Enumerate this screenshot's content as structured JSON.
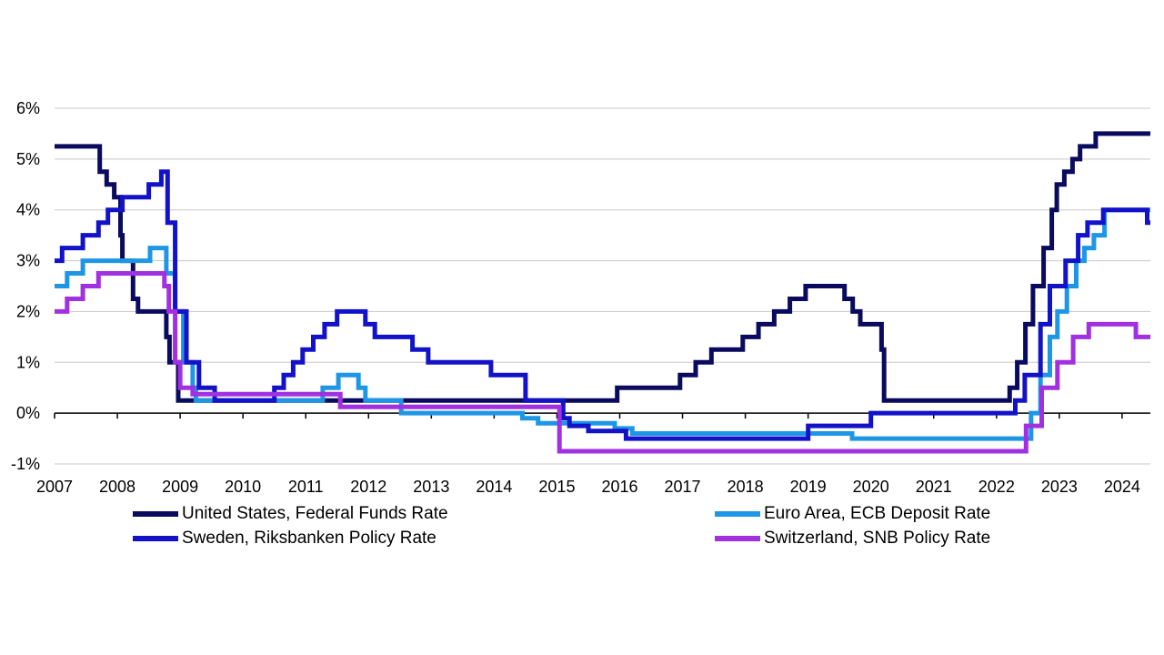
{
  "chart_data": {
    "type": "line",
    "step": true,
    "title": "",
    "xlabel": "",
    "ylabel": "",
    "xlim": [
      2007.0,
      2024.45
    ],
    "ylim": [
      -1,
      6
    ],
    "grid": true,
    "x_ticks": [
      2007,
      2008,
      2009,
      2010,
      2011,
      2012,
      2013,
      2014,
      2015,
      2016,
      2017,
      2018,
      2019,
      2020,
      2021,
      2022,
      2023,
      2024
    ],
    "x_tick_labels": [
      "2007",
      "2008",
      "2009",
      "2010",
      "2011",
      "2012",
      "2013",
      "2014",
      "2015",
      "2016",
      "2017",
      "2018",
      "2019",
      "2020",
      "2021",
      "2022",
      "2023",
      "2024"
    ],
    "y_ticks": [
      -1,
      0,
      1,
      2,
      3,
      4,
      5,
      6
    ],
    "y_tick_labels": [
      "-1%",
      "0%",
      "1%",
      "2%",
      "3%",
      "4%",
      "5%",
      "6%"
    ],
    "legend_position": "bottom",
    "series": [
      {
        "name": "United States, Federal Funds Rate",
        "color": "#0a0a5e",
        "points": [
          [
            2007.0,
            5.25
          ],
          [
            2007.72,
            4.75
          ],
          [
            2007.83,
            4.5
          ],
          [
            2007.95,
            4.25
          ],
          [
            2008.05,
            3.5
          ],
          [
            2008.08,
            3.0
          ],
          [
            2008.25,
            2.25
          ],
          [
            2008.33,
            2.0
          ],
          [
            2008.78,
            1.5
          ],
          [
            2008.83,
            1.0
          ],
          [
            2008.97,
            0.25
          ],
          [
            2015.96,
            0.5
          ],
          [
            2016.96,
            0.75
          ],
          [
            2017.21,
            1.0
          ],
          [
            2017.46,
            1.25
          ],
          [
            2017.96,
            1.5
          ],
          [
            2018.21,
            1.75
          ],
          [
            2018.46,
            2.0
          ],
          [
            2018.71,
            2.25
          ],
          [
            2018.96,
            2.5
          ],
          [
            2019.58,
            2.25
          ],
          [
            2019.71,
            2.0
          ],
          [
            2019.83,
            1.75
          ],
          [
            2020.17,
            1.25
          ],
          [
            2020.21,
            0.25
          ],
          [
            2022.21,
            0.5
          ],
          [
            2022.33,
            1.0
          ],
          [
            2022.46,
            1.75
          ],
          [
            2022.58,
            2.5
          ],
          [
            2022.75,
            3.25
          ],
          [
            2022.88,
            4.0
          ],
          [
            2022.96,
            4.5
          ],
          [
            2023.08,
            4.75
          ],
          [
            2023.21,
            5.0
          ],
          [
            2023.33,
            5.25
          ],
          [
            2023.58,
            5.5
          ],
          [
            2024.45,
            5.5
          ]
        ]
      },
      {
        "name": "Euro Area, ECB Deposit Rate",
        "color": "#1e96e6",
        "points": [
          [
            2007.0,
            2.5
          ],
          [
            2007.2,
            2.75
          ],
          [
            2007.45,
            3.0
          ],
          [
            2008.52,
            3.25
          ],
          [
            2008.78,
            2.75
          ],
          [
            2008.92,
            2.0
          ],
          [
            2009.05,
            1.0
          ],
          [
            2009.2,
            0.5
          ],
          [
            2009.25,
            0.25
          ],
          [
            2011.27,
            0.5
          ],
          [
            2011.52,
            0.75
          ],
          [
            2011.84,
            0.5
          ],
          [
            2011.95,
            0.25
          ],
          [
            2012.52,
            0.0
          ],
          [
            2014.45,
            -0.1
          ],
          [
            2014.7,
            -0.2
          ],
          [
            2015.92,
            -0.3
          ],
          [
            2016.2,
            -0.4
          ],
          [
            2019.7,
            -0.5
          ],
          [
            2022.55,
            0.0
          ],
          [
            2022.7,
            0.75
          ],
          [
            2022.85,
            1.5
          ],
          [
            2022.97,
            2.0
          ],
          [
            2023.12,
            2.5
          ],
          [
            2023.27,
            3.0
          ],
          [
            2023.4,
            3.25
          ],
          [
            2023.55,
            3.5
          ],
          [
            2023.72,
            4.0
          ],
          [
            2024.45,
            4.0
          ]
        ]
      },
      {
        "name": "Sweden, Riksbanken Policy Rate",
        "color": "#1212c8",
        "points": [
          [
            2007.0,
            3.0
          ],
          [
            2007.12,
            3.25
          ],
          [
            2007.45,
            3.5
          ],
          [
            2007.7,
            3.75
          ],
          [
            2007.85,
            4.0
          ],
          [
            2008.08,
            4.25
          ],
          [
            2008.5,
            4.5
          ],
          [
            2008.7,
            4.75
          ],
          [
            2008.8,
            3.75
          ],
          [
            2008.92,
            2.0
          ],
          [
            2009.1,
            1.0
          ],
          [
            2009.3,
            0.5
          ],
          [
            2009.55,
            0.25
          ],
          [
            2010.5,
            0.5
          ],
          [
            2010.65,
            0.75
          ],
          [
            2010.8,
            1.0
          ],
          [
            2010.95,
            1.25
          ],
          [
            2011.12,
            1.5
          ],
          [
            2011.3,
            1.75
          ],
          [
            2011.5,
            2.0
          ],
          [
            2011.95,
            1.75
          ],
          [
            2012.1,
            1.5
          ],
          [
            2012.7,
            1.25
          ],
          [
            2012.95,
            1.0
          ],
          [
            2013.95,
            0.75
          ],
          [
            2014.5,
            0.25
          ],
          [
            2015.1,
            -0.1
          ],
          [
            2015.2,
            -0.25
          ],
          [
            2015.5,
            -0.35
          ],
          [
            2016.1,
            -0.5
          ],
          [
            2019.0,
            -0.25
          ],
          [
            2020.0,
            0.0
          ],
          [
            2022.3,
            0.25
          ],
          [
            2022.45,
            0.75
          ],
          [
            2022.7,
            1.75
          ],
          [
            2022.85,
            2.5
          ],
          [
            2023.1,
            3.0
          ],
          [
            2023.3,
            3.5
          ],
          [
            2023.45,
            3.75
          ],
          [
            2023.7,
            4.0
          ],
          [
            2024.4,
            3.75
          ],
          [
            2024.45,
            3.75
          ]
        ]
      },
      {
        "name": "Switzerland, SNB Policy Rate",
        "color": "#a030e0",
        "points": [
          [
            2007.0,
            2.0
          ],
          [
            2007.2,
            2.25
          ],
          [
            2007.45,
            2.5
          ],
          [
            2007.7,
            2.75
          ],
          [
            2008.75,
            2.5
          ],
          [
            2008.82,
            2.0
          ],
          [
            2008.92,
            1.0
          ],
          [
            2009.0,
            0.5
          ],
          [
            2009.2,
            0.375
          ],
          [
            2011.55,
            0.125
          ],
          [
            2015.04,
            -0.75
          ],
          [
            2022.47,
            -0.25
          ],
          [
            2022.72,
            0.5
          ],
          [
            2022.97,
            1.0
          ],
          [
            2023.22,
            1.5
          ],
          [
            2023.47,
            1.75
          ],
          [
            2024.22,
            1.5
          ],
          [
            2024.45,
            1.5
          ]
        ]
      }
    ]
  },
  "legend": {
    "items": [
      {
        "label": "United States, Federal Funds Rate",
        "color": "#0a0a5e"
      },
      {
        "label": "Euro Area, ECB Deposit Rate",
        "color": "#1e96e6"
      },
      {
        "label": "Sweden, Riksbanken Policy Rate",
        "color": "#1212c8"
      },
      {
        "label": "Switzerland, SNB Policy Rate",
        "color": "#a030e0"
      }
    ]
  }
}
